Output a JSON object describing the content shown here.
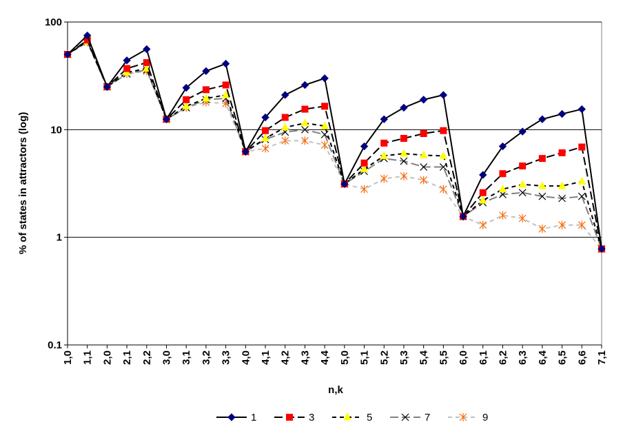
{
  "chart_data": {
    "type": "line",
    "title": "",
    "xlabel": "n,k",
    "ylabel": "% of states in attractors (log)",
    "yscale": "log",
    "ylim": [
      0.1,
      100
    ],
    "yticks": [
      "0.1",
      "1",
      "10",
      "100"
    ],
    "grid": "horizontal major lines at 1, 10, 100",
    "legend_position": "bottom",
    "categories": [
      "1,0",
      "1,1",
      "2,0",
      "2,1",
      "2,2",
      "3,0",
      "3,1",
      "3,2",
      "3,3",
      "4,0",
      "4,1",
      "4,2",
      "4,3",
      "4,4",
      "5,0",
      "5,1",
      "5,2",
      "5,3",
      "5,4",
      "5,5",
      "6,0",
      "6,1",
      "6,2",
      "6,3",
      "6,4",
      "6,5",
      "6,6",
      "7,1"
    ],
    "series": [
      {
        "name": "1",
        "color": "#000000",
        "marker": "diamond",
        "marker_color": "#000080",
        "dash": "solid",
        "values": [
          50,
          75,
          25,
          44,
          56,
          12.5,
          24.5,
          35,
          41,
          6.25,
          13,
          21,
          26,
          30,
          3.13,
          7,
          12.5,
          16,
          19,
          21,
          1.56,
          3.8,
          7,
          9.6,
          12.5,
          14,
          15.5,
          0.78
        ]
      },
      {
        "name": "3",
        "color": "#000000",
        "marker": "square",
        "marker_color": "#ff0000",
        "dash": "long-dash",
        "values": [
          50,
          68,
          25,
          37,
          42,
          12.5,
          19,
          23.5,
          26,
          6.25,
          9.8,
          13,
          15.5,
          16.5,
          3.13,
          4.9,
          7.5,
          8.3,
          9.2,
          9.8,
          1.56,
          2.6,
          3.9,
          4.6,
          5.4,
          6.1,
          6.9,
          0.78
        ]
      },
      {
        "name": "5",
        "color": "#000000",
        "marker": "triangle",
        "marker_color": "#ffff00",
        "dash": "dash",
        "values": [
          50,
          66,
          25,
          34,
          37,
          12.5,
          16.5,
          19.5,
          21,
          6.25,
          8.3,
          10.5,
          11.5,
          10.8,
          3.13,
          4.3,
          5.7,
          6,
          5.8,
          5.7,
          1.56,
          2.2,
          2.8,
          3.1,
          3,
          3,
          3.3,
          0.78
        ]
      },
      {
        "name": "7",
        "color": "#808080",
        "marker": "x",
        "marker_color": "#000000",
        "dash": "long-dash",
        "values": [
          50,
          66,
          25,
          33,
          36,
          12.5,
          16,
          19,
          19.5,
          6.25,
          8.1,
          9.5,
          10,
          9,
          3.13,
          4.1,
          5.4,
          5.1,
          4.5,
          4.5,
          1.56,
          2.1,
          2.5,
          2.6,
          2.4,
          2.3,
          2.4,
          0.78
        ]
      },
      {
        "name": "9",
        "color": "#c0c0c0",
        "marker": "asterisk",
        "marker_color": "#ff6600",
        "dash": "dash",
        "values": [
          50,
          65,
          25,
          33,
          35,
          12.5,
          16,
          18,
          17.5,
          6.25,
          6.7,
          7.9,
          7.9,
          7.2,
          3.13,
          2.8,
          3.5,
          3.7,
          3.4,
          2.8,
          1.56,
          1.3,
          1.6,
          1.5,
          1.2,
          1.3,
          1.3,
          0.78
        ]
      }
    ]
  }
}
